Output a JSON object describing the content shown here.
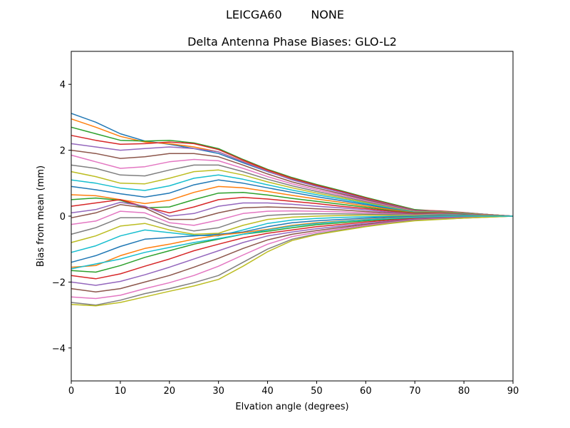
{
  "header": {
    "suptitle": "LEICGA60        NONE"
  },
  "chart_data": {
    "type": "line",
    "title": "Delta Antenna Phase Biases: GLO-L2",
    "xlabel": "Elvation angle (degrees)",
    "ylabel": "Bias from mean (mm)",
    "xlim": [
      0,
      90
    ],
    "ylim": [
      -5,
      5
    ],
    "xticks": [
      0,
      10,
      20,
      30,
      40,
      50,
      60,
      70,
      80,
      90
    ],
    "yticks": [
      -4,
      -2,
      0,
      2,
      4
    ],
    "xtick_labels": [
      "0",
      "10",
      "20",
      "30",
      "40",
      "50",
      "60",
      "70",
      "80",
      "90"
    ],
    "ytick_labels": [
      "−4",
      "−2",
      "0",
      "2",
      "4"
    ],
    "grid": false,
    "legend": "none",
    "x": [
      0,
      5,
      10,
      15,
      20,
      25,
      30,
      35,
      40,
      45,
      50,
      55,
      60,
      65,
      70,
      75,
      80,
      85,
      90
    ],
    "series_colors": [
      "#1f77b4",
      "#ff7f0e",
      "#2ca02c",
      "#d62728",
      "#9467bd",
      "#8c564b",
      "#e377c2",
      "#7f7f7f",
      "#bcbd22",
      "#17becf"
    ],
    "series": [
      {
        "values": [
          3.12,
          2.85,
          2.5,
          2.28,
          2.18,
          2.05,
          1.9,
          1.62,
          1.35,
          1.12,
          0.92,
          0.74,
          0.55,
          0.36,
          0.18,
          0.12,
          0.08,
          0.04,
          0.0
        ]
      },
      {
        "values": [
          2.95,
          2.7,
          2.42,
          2.25,
          2.2,
          2.1,
          1.95,
          1.66,
          1.38,
          1.14,
          0.94,
          0.75,
          0.56,
          0.37,
          0.19,
          0.13,
          0.08,
          0.04,
          0.0
        ]
      },
      {
        "values": [
          2.7,
          2.5,
          2.3,
          2.28,
          2.3,
          2.22,
          2.05,
          1.72,
          1.42,
          1.17,
          0.96,
          0.77,
          0.57,
          0.38,
          0.2,
          0.15,
          0.1,
          0.05,
          0.0
        ]
      },
      {
        "values": [
          2.45,
          2.3,
          2.18,
          2.2,
          2.25,
          2.2,
          2.02,
          1.7,
          1.4,
          1.15,
          0.94,
          0.75,
          0.55,
          0.36,
          0.18,
          0.16,
          0.11,
          0.05,
          0.0
        ]
      },
      {
        "values": [
          2.2,
          2.1,
          2.0,
          2.05,
          2.1,
          2.05,
          1.95,
          1.65,
          1.36,
          1.1,
          0.9,
          0.72,
          0.52,
          0.34,
          0.17,
          0.15,
          0.1,
          0.05,
          0.0
        ]
      },
      {
        "values": [
          2.0,
          1.9,
          1.75,
          1.8,
          1.9,
          1.9,
          1.8,
          1.55,
          1.28,
          1.04,
          0.85,
          0.68,
          0.5,
          0.32,
          0.16,
          0.15,
          0.1,
          0.05,
          0.0
        ]
      },
      {
        "values": [
          1.85,
          1.65,
          1.45,
          1.5,
          1.65,
          1.72,
          1.68,
          1.45,
          1.2,
          0.98,
          0.8,
          0.64,
          0.47,
          0.3,
          0.15,
          0.14,
          0.1,
          0.05,
          0.0
        ]
      },
      {
        "values": [
          1.55,
          1.45,
          1.25,
          1.22,
          1.4,
          1.55,
          1.55,
          1.35,
          1.12,
          0.92,
          0.75,
          0.6,
          0.44,
          0.28,
          0.14,
          0.14,
          0.1,
          0.05,
          0.0
        ]
      },
      {
        "values": [
          1.35,
          1.2,
          1.0,
          0.98,
          1.15,
          1.35,
          1.4,
          1.25,
          1.04,
          0.86,
          0.7,
          0.56,
          0.41,
          0.26,
          0.13,
          0.13,
          0.09,
          0.04,
          0.0
        ]
      },
      {
        "values": [
          1.1,
          1.0,
          0.85,
          0.78,
          0.92,
          1.15,
          1.25,
          1.12,
          0.95,
          0.79,
          0.65,
          0.52,
          0.38,
          0.24,
          0.12,
          0.12,
          0.09,
          0.04,
          0.0
        ]
      },
      {
        "values": [
          0.9,
          0.8,
          0.68,
          0.58,
          0.7,
          0.95,
          1.1,
          1.0,
          0.86,
          0.72,
          0.59,
          0.47,
          0.35,
          0.22,
          0.11,
          0.12,
          0.08,
          0.04,
          0.0
        ]
      },
      {
        "values": [
          0.65,
          0.62,
          0.5,
          0.38,
          0.48,
          0.72,
          0.9,
          0.86,
          0.75,
          0.63,
          0.52,
          0.42,
          0.31,
          0.2,
          0.1,
          0.11,
          0.08,
          0.04,
          0.0
        ]
      },
      {
        "values": [
          0.5,
          0.55,
          0.48,
          0.25,
          0.28,
          0.5,
          0.7,
          0.72,
          0.64,
          0.54,
          0.45,
          0.36,
          0.27,
          0.17,
          0.09,
          0.1,
          0.07,
          0.03,
          0.0
        ]
      },
      {
        "values": [
          0.3,
          0.4,
          0.5,
          0.28,
          0.1,
          0.28,
          0.5,
          0.57,
          0.52,
          0.45,
          0.38,
          0.3,
          0.23,
          0.15,
          0.08,
          0.09,
          0.06,
          0.03,
          0.0
        ]
      },
      {
        "values": [
          0.1,
          0.2,
          0.42,
          0.3,
          0.0,
          0.08,
          0.3,
          0.4,
          0.4,
          0.36,
          0.3,
          0.25,
          0.19,
          0.12,
          0.06,
          0.08,
          0.06,
          0.03,
          0.0
        ]
      },
      {
        "values": [
          -0.05,
          0.1,
          0.35,
          0.25,
          -0.1,
          -0.1,
          0.1,
          0.25,
          0.28,
          0.26,
          0.22,
          0.19,
          0.14,
          0.09,
          0.05,
          0.07,
          0.05,
          0.02,
          0.0
        ]
      },
      {
        "values": [
          -0.25,
          -0.15,
          0.15,
          0.1,
          -0.2,
          -0.28,
          -0.12,
          0.08,
          0.15,
          0.16,
          0.15,
          0.13,
          0.1,
          0.07,
          0.04,
          0.06,
          0.04,
          0.02,
          0.0
        ]
      },
      {
        "values": [
          -0.55,
          -0.35,
          -0.05,
          -0.05,
          -0.3,
          -0.45,
          -0.35,
          -0.1,
          0.02,
          0.06,
          0.07,
          0.07,
          0.06,
          0.05,
          0.03,
          0.05,
          0.04,
          0.02,
          0.0
        ]
      },
      {
        "values": [
          -0.8,
          -0.6,
          -0.3,
          -0.22,
          -0.42,
          -0.55,
          -0.52,
          -0.28,
          -0.1,
          -0.03,
          0.0,
          0.02,
          0.03,
          0.02,
          0.02,
          0.04,
          0.03,
          0.02,
          0.0
        ]
      },
      {
        "values": [
          -1.1,
          -0.9,
          -0.6,
          -0.42,
          -0.5,
          -0.58,
          -0.6,
          -0.42,
          -0.22,
          -0.12,
          -0.07,
          -0.04,
          -0.02,
          -0.01,
          0.0,
          0.03,
          0.03,
          0.01,
          0.0
        ]
      },
      {
        "values": [
          -1.4,
          -1.2,
          -0.92,
          -0.7,
          -0.65,
          -0.6,
          -0.55,
          -0.48,
          -0.32,
          -0.2,
          -0.14,
          -0.1,
          -0.06,
          -0.03,
          -0.01,
          0.02,
          0.02,
          0.01,
          0.0
        ]
      },
      {
        "values": [
          -1.55,
          -1.5,
          -1.2,
          -0.98,
          -0.85,
          -0.7,
          -0.58,
          -0.5,
          -0.4,
          -0.28,
          -0.2,
          -0.15,
          -0.1,
          -0.06,
          -0.03,
          0.0,
          0.01,
          0.01,
          0.0
        ]
      },
      {
        "values": [
          -1.65,
          -1.7,
          -1.5,
          -1.25,
          -1.05,
          -0.85,
          -0.7,
          -0.55,
          -0.46,
          -0.35,
          -0.26,
          -0.2,
          -0.14,
          -0.09,
          -0.05,
          -0.02,
          0.0,
          0.0,
          0.0
        ]
      },
      {
        "values": [
          -1.8,
          -1.9,
          -1.75,
          -1.52,
          -1.3,
          -1.05,
          -0.85,
          -0.66,
          -0.52,
          -0.42,
          -0.32,
          -0.25,
          -0.18,
          -0.12,
          -0.07,
          -0.04,
          -0.02,
          -0.01,
          0.0
        ]
      },
      {
        "values": [
          -2.0,
          -2.1,
          -1.98,
          -1.78,
          -1.55,
          -1.3,
          -1.05,
          -0.8,
          -0.6,
          -0.48,
          -0.38,
          -0.3,
          -0.22,
          -0.15,
          -0.09,
          -0.05,
          -0.03,
          -0.01,
          0.0
        ]
      },
      {
        "values": [
          -2.2,
          -2.3,
          -2.2,
          -2.0,
          -1.8,
          -1.55,
          -1.28,
          -0.98,
          -0.72,
          -0.55,
          -0.44,
          -0.34,
          -0.25,
          -0.17,
          -0.11,
          -0.07,
          -0.04,
          -0.02,
          0.0
        ]
      },
      {
        "values": [
          -2.45,
          -2.5,
          -2.4,
          -2.2,
          -2.02,
          -1.8,
          -1.52,
          -1.18,
          -0.85,
          -0.62,
          -0.49,
          -0.38,
          -0.28,
          -0.19,
          -0.12,
          -0.08,
          -0.05,
          -0.02,
          0.0
        ]
      },
      {
        "values": [
          -2.62,
          -2.7,
          -2.55,
          -2.35,
          -2.2,
          -2.02,
          -1.8,
          -1.4,
          -1.0,
          -0.7,
          -0.54,
          -0.42,
          -0.31,
          -0.21,
          -0.13,
          -0.09,
          -0.06,
          -0.03,
          0.0
        ]
      },
      {
        "values": [
          -2.68,
          -2.72,
          -2.62,
          -2.45,
          -2.28,
          -2.12,
          -1.92,
          -1.52,
          -1.08,
          -0.74,
          -0.56,
          -0.44,
          -0.32,
          -0.22,
          -0.14,
          -0.1,
          -0.06,
          -0.03,
          0.0
        ]
      },
      {
        "values": [
          -1.6,
          -1.45,
          -1.3,
          -1.1,
          -0.95,
          -0.8,
          -0.68,
          -0.55,
          -0.42,
          -0.3,
          -0.22,
          -0.16,
          -0.11,
          -0.07,
          -0.04,
          -0.01,
          0.0,
          0.0,
          0.0
        ]
      }
    ]
  }
}
